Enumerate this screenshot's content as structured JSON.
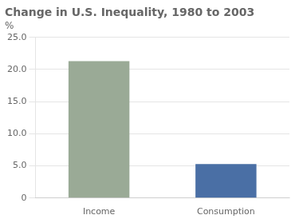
{
  "chart_data": {
    "type": "bar",
    "title": "Change in U.S. Inequality, 1980 to 2003",
    "ylabel": "%",
    "categories": [
      "Income",
      "Consumption"
    ],
    "values": [
      21.3,
      5.3
    ],
    "colors": [
      "#9aaa96",
      "#4a6fa5"
    ],
    "ylim": [
      0,
      25
    ],
    "yticks": [
      0,
      {
        "value": 5.0,
        "label": "5.0"
      },
      {
        "value": 10.0,
        "label": "10.0"
      },
      {
        "value": 15.0,
        "label": "15.0"
      },
      {
        "value": 20.0,
        "label": "20.0"
      },
      {
        "value": 25.0,
        "label": "25.0"
      }
    ],
    "grid": true
  }
}
